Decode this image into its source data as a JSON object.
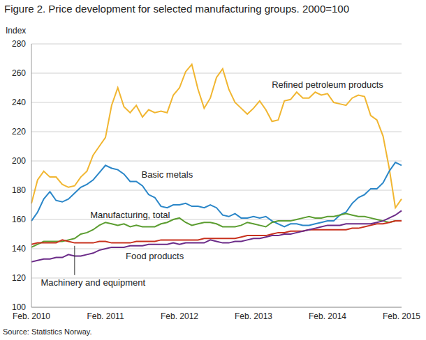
{
  "chart_data": {
    "type": "line",
    "title": "Figure 2. Price development for selected manufacturing groups. 2000=100",
    "y_label": "Index",
    "source": "Source: Statistics Norway.",
    "categories": [
      "Feb. 2010",
      null,
      null,
      null,
      null,
      null,
      null,
      null,
      null,
      null,
      null,
      null,
      "Feb. 2011",
      null,
      null,
      null,
      null,
      null,
      null,
      null,
      null,
      null,
      null,
      null,
      "Feb. 2012",
      null,
      null,
      null,
      null,
      null,
      null,
      null,
      null,
      null,
      null,
      null,
      "Feb. 2013",
      null,
      null,
      null,
      null,
      null,
      null,
      null,
      null,
      null,
      null,
      null,
      "Feb. 2014",
      null,
      null,
      null,
      null,
      null,
      null,
      null,
      null,
      null,
      null,
      null,
      "Feb. 2015"
    ],
    "series": [
      {
        "name": "Refined petroleum products",
        "color": "#f1b631",
        "values": [
          171,
          187,
          193,
          189,
          189,
          184,
          182,
          183,
          189,
          193,
          204,
          210,
          216,
          238,
          250,
          237,
          233,
          238,
          230,
          235,
          233,
          234,
          233,
          245,
          250,
          261,
          266,
          249,
          236,
          243,
          257,
          263,
          249,
          240,
          236,
          232,
          236,
          241,
          235,
          227,
          228,
          241,
          242,
          247,
          243,
          243,
          247,
          245,
          246,
          240,
          239,
          238,
          243,
          245,
          244,
          231,
          228,
          217,
          195,
          168,
          174
        ]
      },
      {
        "name": "Basic metals",
        "color": "#2a86c8",
        "values": [
          159,
          165,
          174,
          179,
          173,
          172,
          174,
          178,
          182,
          184,
          187,
          192,
          197,
          195,
          194,
          191,
          186,
          186,
          183,
          177,
          175,
          169,
          168,
          170,
          170,
          171,
          169,
          169,
          168,
          170,
          168,
          163,
          162,
          164,
          161,
          161,
          162,
          161,
          162,
          159,
          157,
          155,
          157,
          157,
          156,
          156,
          157,
          158,
          159,
          159,
          163,
          165,
          171,
          175,
          177,
          181,
          181,
          185,
          193,
          199,
          197
        ]
      },
      {
        "name": "Manufacturing, total",
        "color": "#5b9d30",
        "values": [
          141,
          143,
          145,
          145,
          145,
          145,
          146,
          147,
          150,
          151,
          153,
          156,
          158,
          157,
          156,
          157,
          155,
          156,
          155,
          155,
          155,
          157,
          158,
          160,
          161,
          158,
          156,
          157,
          158,
          158,
          157,
          155,
          155,
          155,
          156,
          158,
          157,
          156,
          155,
          158,
          159,
          159,
          159,
          160,
          161,
          162,
          161,
          161,
          162,
          162,
          163,
          164,
          163,
          162,
          162,
          161,
          160,
          159,
          158,
          159,
          159
        ]
      },
      {
        "name": "Food products",
        "color": "#c8321e",
        "values": [
          143,
          144,
          144,
          144,
          144,
          146,
          145,
          144,
          144,
          144,
          144,
          145,
          145,
          144,
          144,
          144,
          144,
          145,
          145,
          145,
          145,
          146,
          146,
          146,
          146,
          146,
          146,
          146,
          147,
          147,
          147,
          147,
          147,
          147,
          148,
          149,
          149,
          149,
          149,
          150,
          151,
          151,
          152,
          152,
          152,
          153,
          153,
          153,
          153,
          153,
          153,
          153,
          154,
          154,
          155,
          156,
          157,
          157,
          158,
          159,
          159
        ]
      },
      {
        "name": "Machinery and equipment",
        "color": "#6b2b88",
        "values": [
          131,
          132,
          133,
          133,
          134,
          134,
          136,
          135,
          135,
          136,
          137,
          139,
          140,
          141,
          141,
          141,
          142,
          142,
          142,
          143,
          143,
          143,
          143,
          144,
          143,
          144,
          144,
          144,
          144,
          146,
          145,
          144,
          144,
          145,
          145,
          146,
          147,
          147,
          148,
          149,
          149,
          150,
          150,
          151,
          152,
          153,
          154,
          155,
          156,
          156,
          156,
          157,
          157,
          157,
          157,
          157,
          158,
          159,
          161,
          163,
          166
        ]
      }
    ],
    "ylim": [
      100,
      280
    ],
    "yticks": [
      100,
      120,
      140,
      160,
      180,
      200,
      220,
      240,
      260,
      280
    ],
    "grid": true
  }
}
